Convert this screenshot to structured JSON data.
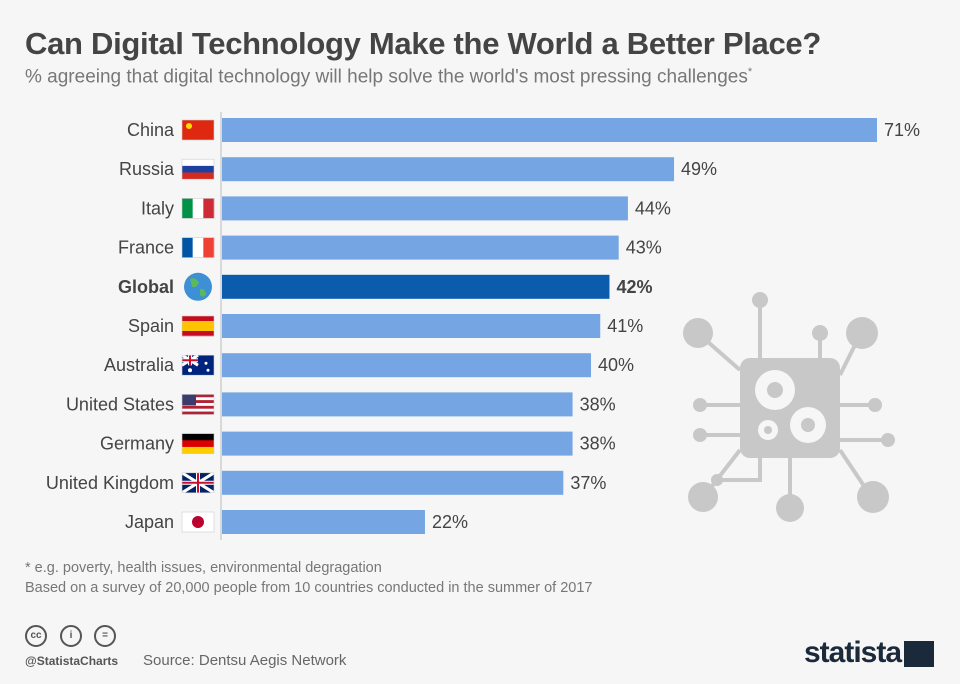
{
  "title": "Can Digital Technology Make the World a Better Place?",
  "subtitle": "% agreeing that digital technology will help solve the world's most pressing challenges",
  "subtitle_mark": "*",
  "chart_data": {
    "type": "bar",
    "orientation": "horizontal",
    "categories": [
      "China",
      "Russia",
      "Italy",
      "France",
      "Global",
      "Spain",
      "Australia",
      "United States",
      "Germany",
      "United Kingdom",
      "Japan"
    ],
    "values": [
      71,
      49,
      44,
      43,
      42,
      41,
      40,
      38,
      38,
      37,
      22
    ],
    "value_labels": [
      "71%",
      "49%",
      "44%",
      "43%",
      "42%",
      "41%",
      "40%",
      "38%",
      "38%",
      "37%",
      "22%"
    ],
    "highlight": "Global",
    "unit": "%",
    "xlim": [
      0,
      71
    ],
    "grid": false,
    "colors": {
      "bar": "#75a5e3",
      "highlight": "#0b5cad"
    }
  },
  "notes": [
    "* e.g. poverty, health issues, environmental degragation",
    "Based on a survey of 20,000 people from 10 countries conducted in the summer of 2017"
  ],
  "footer": {
    "handle": "@StatistaCharts",
    "source": "Source: Dentsu Aegis Network",
    "logo": "statista",
    "license_icons": [
      "cc-icon",
      "by-icon",
      "nd-icon"
    ]
  }
}
